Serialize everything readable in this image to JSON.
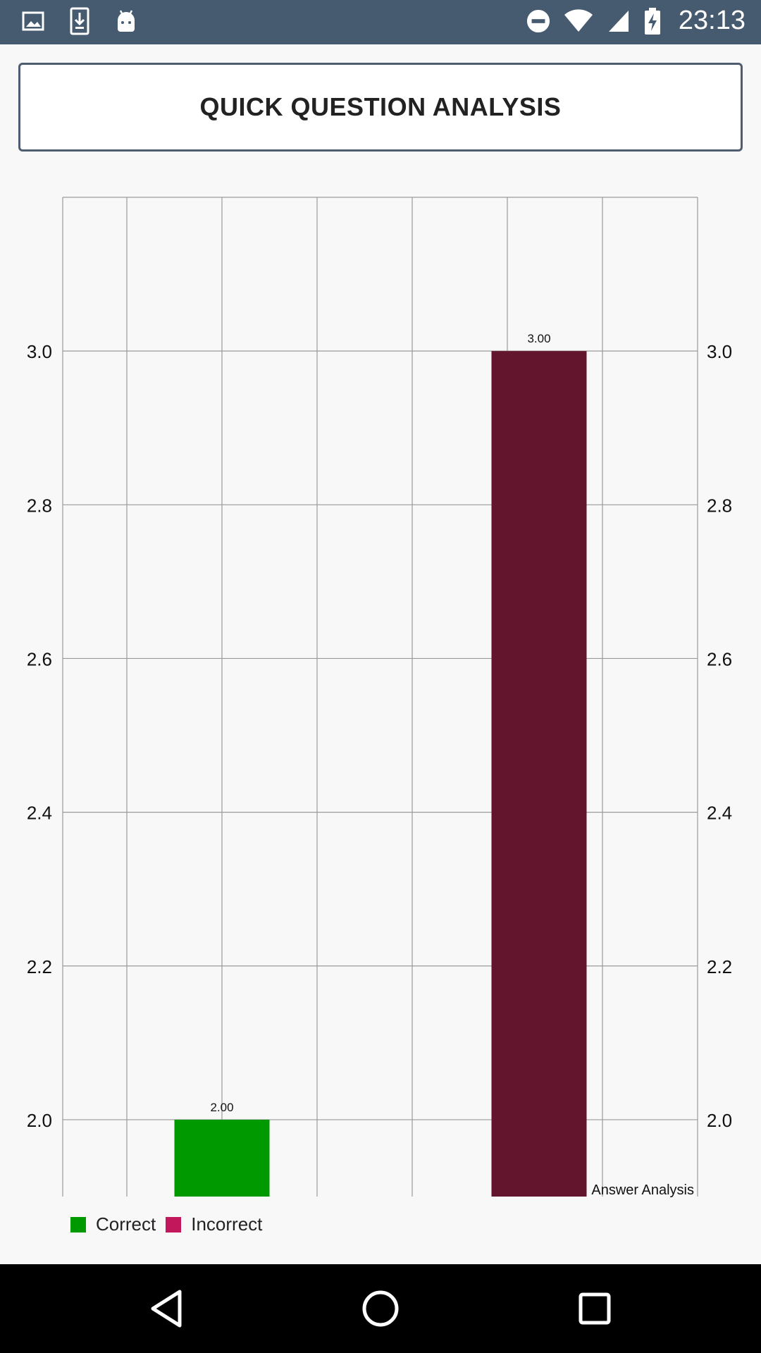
{
  "status_bar": {
    "time": "23:13",
    "icons_left": [
      "image-icon",
      "download-icon",
      "android-icon"
    ],
    "icons_right": [
      "do-not-disturb-icon",
      "wifi-icon",
      "signal-icon",
      "battery-charging-icon"
    ]
  },
  "header": {
    "title": "QUICK QUESTION ANALYSIS"
  },
  "chart_data": {
    "type": "bar",
    "categories": [
      "Correct",
      "Incorrect"
    ],
    "series": [
      {
        "name": "Correct",
        "values": [
          2.0,
          null
        ],
        "color": "#009900"
      },
      {
        "name": "Incorrect",
        "values": [
          null,
          3.0
        ],
        "color": "#62152c"
      }
    ],
    "value_labels": [
      "2.00",
      "3.00"
    ],
    "xlabel": "Answer Analysis",
    "ylim": [
      1.9,
      3.2
    ],
    "yticks": [
      2.0,
      2.2,
      2.4,
      2.6,
      2.8,
      3.0
    ],
    "ytick_labels": [
      "2.0",
      "2.2",
      "2.4",
      "2.6",
      "2.8",
      "3.0"
    ],
    "legend_swatch_colors": [
      "#009900",
      "#c2185b"
    ],
    "dual_y_axis": true,
    "grid": true,
    "legend_position": "bottom-left"
  },
  "legend": {
    "items": [
      {
        "label": "Correct",
        "color": "#009900"
      },
      {
        "label": "Incorrect",
        "color": "#c2185b"
      }
    ]
  },
  "nav_bar": {
    "buttons": [
      "back-icon",
      "home-icon",
      "recents-icon"
    ]
  }
}
